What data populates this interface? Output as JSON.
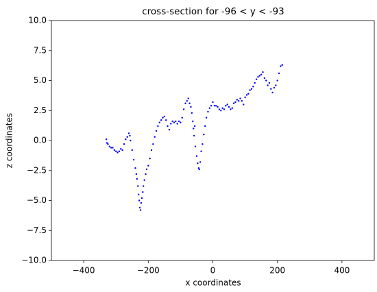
{
  "chart_data": {
    "type": "scatter",
    "title": "cross-section for -96 < y < -93",
    "x_label": "x coordinates",
    "y_label": "z coordinates",
    "color": "#0000ff",
    "xlim": [
      -500,
      500
    ],
    "ylim": [
      -10,
      10
    ],
    "xticks": [
      {
        "value": -400,
        "label": "−400"
      },
      {
        "value": -200,
        "label": "−200"
      },
      0,
      200,
      400
    ],
    "yticks": [
      {
        "value": -10,
        "label": "−10.0"
      },
      {
        "value": -7.5,
        "label": "−7.5"
      },
      {
        "value": -5,
        "label": "−5.0"
      },
      {
        "value": -2.5,
        "label": "−2.5"
      },
      {
        "value": 0,
        "label": "0.0"
      },
      2.5,
      {
        "value": 5,
        "label": "5.0"
      },
      7.5,
      {
        "value": 10,
        "label": "10.0"
      }
    ],
    "x": [
      -330,
      -328,
      -325,
      -320,
      -315,
      -310,
      -305,
      -300,
      -295,
      -290,
      -285,
      -280,
      -275,
      -270,
      -265,
      -260,
      -257,
      -255,
      -250,
      -245,
      -240,
      -237,
      -235,
      -232,
      -230,
      -228,
      -226,
      -224,
      -222,
      -220,
      -217,
      -215,
      -212,
      -208,
      -205,
      -200,
      -195,
      -190,
      -185,
      -180,
      -175,
      -170,
      -165,
      -160,
      -155,
      -150,
      -145,
      -140,
      -135,
      -130,
      -125,
      -120,
      -115,
      -110,
      -105,
      -100,
      -95,
      -90,
      -85,
      -80,
      -76,
      -72,
      -68,
      -65,
      -62,
      -60,
      -58,
      -56,
      -54,
      -50,
      -47,
      -44,
      -42,
      -39,
      -36,
      -32,
      -28,
      -24,
      -20,
      -15,
      -10,
      -5,
      0,
      5,
      10,
      15,
      20,
      25,
      30,
      35,
      40,
      45,
      50,
      55,
      60,
      65,
      70,
      75,
      80,
      85,
      90,
      95,
      100,
      105,
      110,
      115,
      120,
      125,
      130,
      135,
      140,
      145,
      150,
      155,
      160,
      165,
      170,
      175,
      180,
      185,
      190,
      195,
      200,
      205,
      210,
      215
    ],
    "values": [
      0.1,
      -0.2,
      -0.3,
      -0.5,
      -0.6,
      -0.6,
      -0.8,
      -0.9,
      -1.0,
      -0.9,
      -0.7,
      -0.8,
      -0.3,
      0.1,
      0.3,
      0.6,
      0.4,
      0.0,
      -0.8,
      -1.6,
      -2.3,
      -2.8,
      -3.2,
      -3.8,
      -4.5,
      -5.0,
      -5.6,
      -5.8,
      -5.2,
      -4.8,
      -4.3,
      -3.8,
      -3.3,
      -2.8,
      -2.4,
      -2.1,
      -1.5,
      -0.8,
      -0.3,
      0.3,
      0.8,
      1.2,
      1.5,
      1.7,
      1.9,
      2.0,
      1.7,
      1.2,
      0.9,
      1.4,
      1.6,
      1.5,
      1.6,
      1.4,
      1.6,
      1.5,
      1.9,
      2.6,
      3.1,
      3.3,
      3.5,
      3.1,
      2.8,
      2.3,
      1.6,
      1.0,
      0.4,
      1.2,
      -0.5,
      -1.3,
      -1.9,
      -2.3,
      -2.4,
      -1.8,
      -0.9,
      -0.3,
      0.5,
      1.2,
      1.9,
      2.4,
      2.7,
      2.9,
      3.2,
      2.9,
      2.9,
      2.8,
      2.6,
      2.5,
      2.7,
      2.6,
      2.9,
      3.0,
      2.8,
      2.6,
      2.7,
      3.1,
      3.2,
      3.4,
      3.3,
      3.5,
      3.3,
      3.0,
      3.6,
      3.8,
      3.9,
      4.2,
      4.3,
      4.5,
      4.8,
      5.1,
      5.3,
      5.4,
      5.5,
      5.7,
      5.2,
      5.0,
      4.6,
      4.8,
      4.3,
      4.0,
      4.4,
      4.6,
      5.0,
      5.6,
      6.2,
      6.3
    ]
  }
}
